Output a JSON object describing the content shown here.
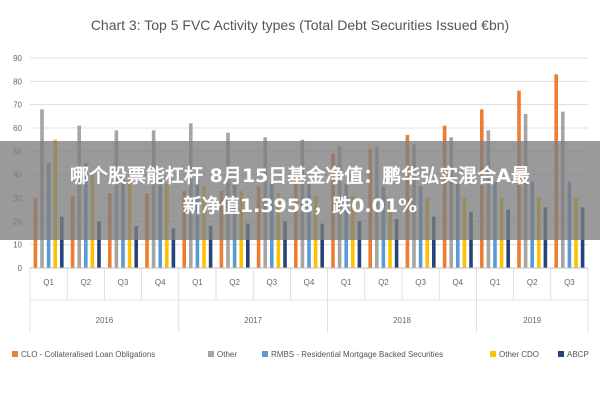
{
  "overlay": {
    "line1": "哪个股票能杠杆 8月15日基金净值：鹏华弘实混合A最",
    "line2": "新净值1.3958，跌0.01%"
  },
  "chart_data": {
    "type": "bar",
    "title": "Chart 3: Top 5 FVC Activity types (Total Debt Securities Issued €bn)",
    "ylim": [
      0,
      90
    ],
    "yticks": [
      0,
      10,
      20,
      30,
      40,
      50,
      60,
      70,
      80,
      90
    ],
    "grid": true,
    "legend_position": "bottom",
    "categories": [
      "Q1",
      "Q2",
      "Q3",
      "Q4",
      "Q1",
      "Q2",
      "Q3",
      "Q4",
      "Q1",
      "Q2",
      "Q3",
      "Q4",
      "Q1",
      "Q2",
      "Q3"
    ],
    "groups": [
      {
        "label": "2016",
        "count": 4
      },
      {
        "label": "2017",
        "count": 4
      },
      {
        "label": "2018",
        "count": 4
      },
      {
        "label": "2019",
        "count": 3
      }
    ],
    "series": [
      {
        "name": "CLO - Collateralised Loan Obligations",
        "color": "#ED7D31",
        "values": [
          30,
          31,
          32,
          32,
          33,
          33,
          35,
          41,
          49,
          51,
          57,
          61,
          68,
          76,
          83
        ]
      },
      {
        "name": "Other",
        "color": "#A5A5A5",
        "values": [
          68,
          61,
          59,
          59,
          62,
          58,
          56,
          55,
          52,
          52,
          53,
          56,
          59,
          66,
          67
        ]
      },
      {
        "name": "RMBS - Residential Mortgage Backed Securities",
        "color": "#5B9BD5",
        "values": [
          45,
          45,
          40,
          38,
          38,
          37,
          36,
          36,
          36,
          35,
          35,
          36,
          37,
          37,
          37
        ]
      },
      {
        "name": "Other CDO",
        "color": "#FFC000",
        "values": [
          55,
          40,
          38,
          36,
          35,
          33,
          32,
          31,
          31,
          30,
          30,
          30,
          30,
          30,
          30
        ]
      },
      {
        "name": "ABCP",
        "color": "#264478",
        "values": [
          22,
          20,
          18,
          17,
          18,
          19,
          20,
          19,
          20,
          21,
          22,
          24,
          25,
          26,
          26
        ]
      }
    ]
  }
}
